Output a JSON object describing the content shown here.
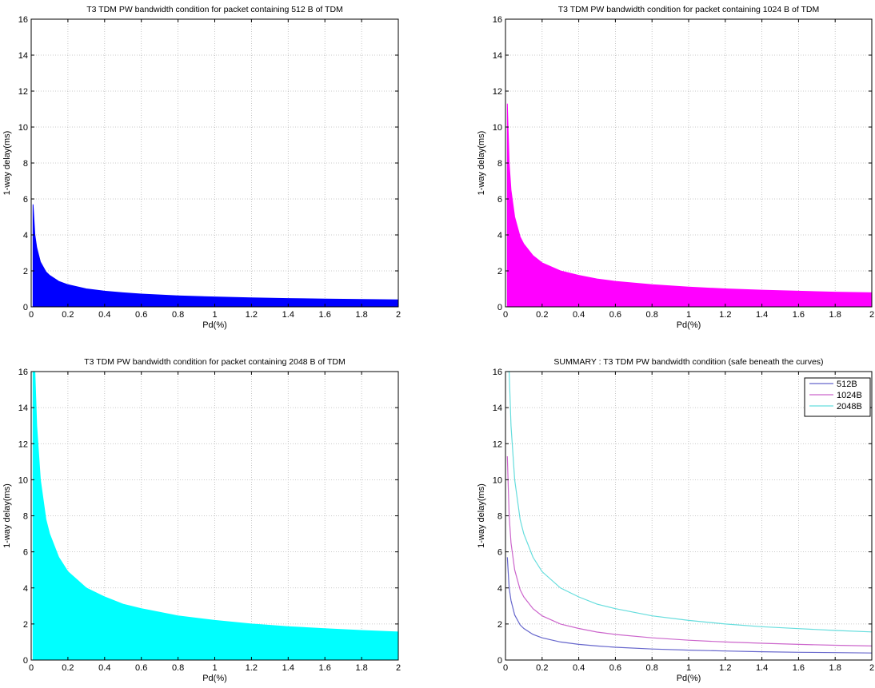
{
  "chart_data": [
    {
      "type": "area",
      "title": "T3 TDM PW bandwidth condition for packet containing 512 B of TDM",
      "xlabel": "Pd(%)",
      "ylabel": "1-way delay(ms)",
      "xlim": [
        0,
        2
      ],
      "ylim": [
        0,
        16
      ],
      "xticks": [
        0,
        0.2,
        0.4,
        0.6,
        0.8,
        1,
        1.2,
        1.4,
        1.6,
        1.8,
        2
      ],
      "yticks": [
        0,
        2,
        4,
        6,
        8,
        10,
        12,
        14,
        16
      ],
      "grid": true,
      "series": [
        {
          "color": "#0000ff",
          "x": [
            0.01,
            0.02,
            0.03,
            0.05,
            0.08,
            0.1,
            0.15,
            0.2,
            0.3,
            0.4,
            0.5,
            0.6,
            0.8,
            1.0,
            1.2,
            1.4,
            1.6,
            1.8,
            2.0
          ],
          "y": [
            5.7,
            4.0,
            3.3,
            2.5,
            1.95,
            1.75,
            1.42,
            1.23,
            1.0,
            0.87,
            0.78,
            0.71,
            0.61,
            0.55,
            0.5,
            0.46,
            0.43,
            0.41,
            0.39
          ]
        }
      ]
    },
    {
      "type": "area",
      "title": "T3 TDM PW bandwidth condition for packet containing 1024 B of TDM",
      "xlabel": "Pd(%)",
      "ylabel": "1-way delay(ms)",
      "xlim": [
        0,
        2
      ],
      "ylim": [
        0,
        16
      ],
      "xticks": [
        0,
        0.2,
        0.4,
        0.6,
        0.8,
        1,
        1.2,
        1.4,
        1.6,
        1.8,
        2
      ],
      "yticks": [
        0,
        2,
        4,
        6,
        8,
        10,
        12,
        14,
        16
      ],
      "grid": true,
      "series": [
        {
          "color": "#ff00ff",
          "x": [
            0.01,
            0.02,
            0.03,
            0.05,
            0.08,
            0.1,
            0.15,
            0.2,
            0.3,
            0.4,
            0.5,
            0.6,
            0.8,
            1.0,
            1.2,
            1.4,
            1.6,
            1.8,
            2.0
          ],
          "y": [
            11.3,
            8.0,
            6.5,
            5.0,
            3.9,
            3.5,
            2.85,
            2.45,
            2.0,
            1.75,
            1.55,
            1.42,
            1.23,
            1.1,
            1.0,
            0.93,
            0.87,
            0.82,
            0.78
          ]
        }
      ]
    },
    {
      "type": "area",
      "title": "T3 TDM PW bandwidth condition for packet containing 2048 B of TDM",
      "xlabel": "Pd(%)",
      "ylabel": "1-way delay(ms)",
      "xlim": [
        0,
        2
      ],
      "ylim": [
        0,
        16
      ],
      "xticks": [
        0,
        0.2,
        0.4,
        0.6,
        0.8,
        1,
        1.2,
        1.4,
        1.6,
        1.8,
        2
      ],
      "yticks": [
        0,
        2,
        4,
        6,
        8,
        10,
        12,
        14,
        16
      ],
      "grid": true,
      "series": [
        {
          "color": "#00ffff",
          "x": [
            0.01,
            0.02,
            0.03,
            0.05,
            0.08,
            0.1,
            0.15,
            0.2,
            0.3,
            0.4,
            0.5,
            0.6,
            0.8,
            1.0,
            1.2,
            1.4,
            1.6,
            1.8,
            2.0
          ],
          "y": [
            16.0,
            16.0,
            13.0,
            10.0,
            7.8,
            7.0,
            5.7,
            4.9,
            4.0,
            3.5,
            3.1,
            2.85,
            2.45,
            2.2,
            2.0,
            1.85,
            1.74,
            1.64,
            1.56
          ]
        }
      ]
    },
    {
      "type": "line",
      "title": "SUMMARY : T3 TDM PW bandwidth condition (safe beneath the curves)",
      "xlabel": "Pd(%)",
      "ylabel": "1-way delay(ms)",
      "xlim": [
        0,
        2
      ],
      "ylim": [
        0,
        16
      ],
      "xticks": [
        0,
        0.2,
        0.4,
        0.6,
        0.8,
        1,
        1.2,
        1.4,
        1.6,
        1.8,
        2
      ],
      "yticks": [
        0,
        2,
        4,
        6,
        8,
        10,
        12,
        14,
        16
      ],
      "grid": true,
      "legend_position": "top-right",
      "series": [
        {
          "name": "512B",
          "color": "#6666cc",
          "x": [
            0.01,
            0.02,
            0.03,
            0.05,
            0.08,
            0.1,
            0.15,
            0.2,
            0.3,
            0.4,
            0.5,
            0.6,
            0.8,
            1.0,
            1.2,
            1.4,
            1.6,
            1.8,
            2.0
          ],
          "y": [
            5.7,
            4.0,
            3.3,
            2.5,
            1.95,
            1.75,
            1.42,
            1.23,
            1.0,
            0.87,
            0.78,
            0.71,
            0.61,
            0.55,
            0.5,
            0.46,
            0.43,
            0.41,
            0.39
          ]
        },
        {
          "name": "1024B",
          "color": "#cc66cc",
          "x": [
            0.01,
            0.02,
            0.03,
            0.05,
            0.08,
            0.1,
            0.15,
            0.2,
            0.3,
            0.4,
            0.5,
            0.6,
            0.8,
            1.0,
            1.2,
            1.4,
            1.6,
            1.8,
            2.0
          ],
          "y": [
            11.3,
            8.0,
            6.5,
            5.0,
            3.9,
            3.5,
            2.85,
            2.45,
            2.0,
            1.75,
            1.55,
            1.42,
            1.23,
            1.1,
            1.0,
            0.93,
            0.87,
            0.82,
            0.78
          ]
        },
        {
          "name": "2048B",
          "color": "#66dddd",
          "x": [
            0.01,
            0.02,
            0.03,
            0.05,
            0.08,
            0.1,
            0.15,
            0.2,
            0.3,
            0.4,
            0.5,
            0.6,
            0.8,
            1.0,
            1.2,
            1.4,
            1.6,
            1.8,
            2.0
          ],
          "y": [
            16.0,
            16.0,
            13.0,
            10.0,
            7.8,
            7.0,
            5.7,
            4.9,
            4.0,
            3.5,
            3.1,
            2.85,
            2.45,
            2.2,
            2.0,
            1.85,
            1.74,
            1.64,
            1.56
          ]
        }
      ]
    }
  ]
}
